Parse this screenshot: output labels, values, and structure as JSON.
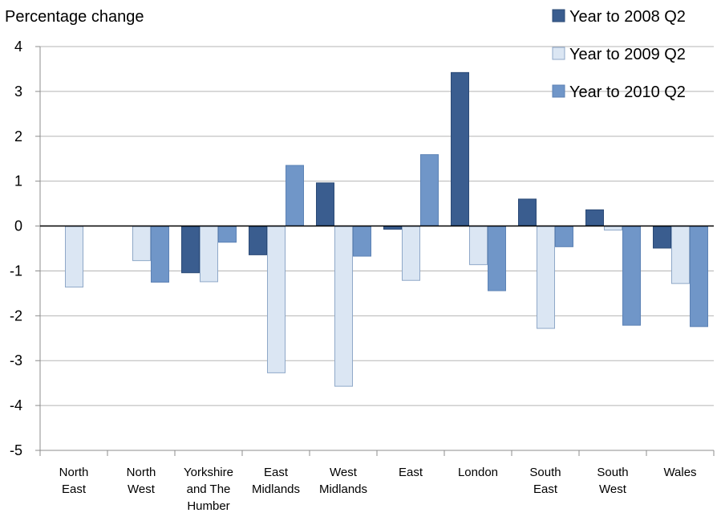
{
  "chart_data": {
    "type": "bar",
    "ylabel": "Percentage change",
    "ylim": [
      -5,
      4
    ],
    "yticks": [
      4,
      3,
      2,
      1,
      0,
      -1,
      -2,
      -3,
      -4,
      -5
    ],
    "grid": true,
    "legend": "top-right",
    "categories": [
      [
        "North",
        "East"
      ],
      [
        "North",
        "West"
      ],
      [
        "Yorkshire",
        "and The",
        "Humber"
      ],
      [
        "East",
        "Midlands"
      ],
      [
        "West",
        "Midlands"
      ],
      [
        "East"
      ],
      [
        "London"
      ],
      [
        "South",
        "East"
      ],
      [
        "South",
        "West"
      ],
      [
        "Wales"
      ]
    ],
    "series": [
      {
        "name": "Year to 2008 Q2",
        "color": "#3a5d8f",
        "stroke": "#2b4a76",
        "values": [
          0,
          0,
          -1.05,
          -0.65,
          0.97,
          -0.08,
          3.43,
          0.61,
          0.37,
          -0.5
        ]
      },
      {
        "name": "Year to 2009 Q2",
        "color": "#dbe6f3",
        "stroke": "#8fa8c8",
        "values": [
          -1.37,
          -0.78,
          -1.25,
          -3.28,
          -3.58,
          -1.22,
          -0.87,
          -2.29,
          -0.1,
          -1.29
        ]
      },
      {
        "name": "Year to 2010 Q2",
        "color": "#7096c8",
        "stroke": "#5c82b5",
        "values": [
          0,
          -1.26,
          -0.37,
          1.36,
          -0.68,
          1.6,
          -1.45,
          -0.47,
          -2.22,
          -2.25
        ]
      }
    ]
  }
}
